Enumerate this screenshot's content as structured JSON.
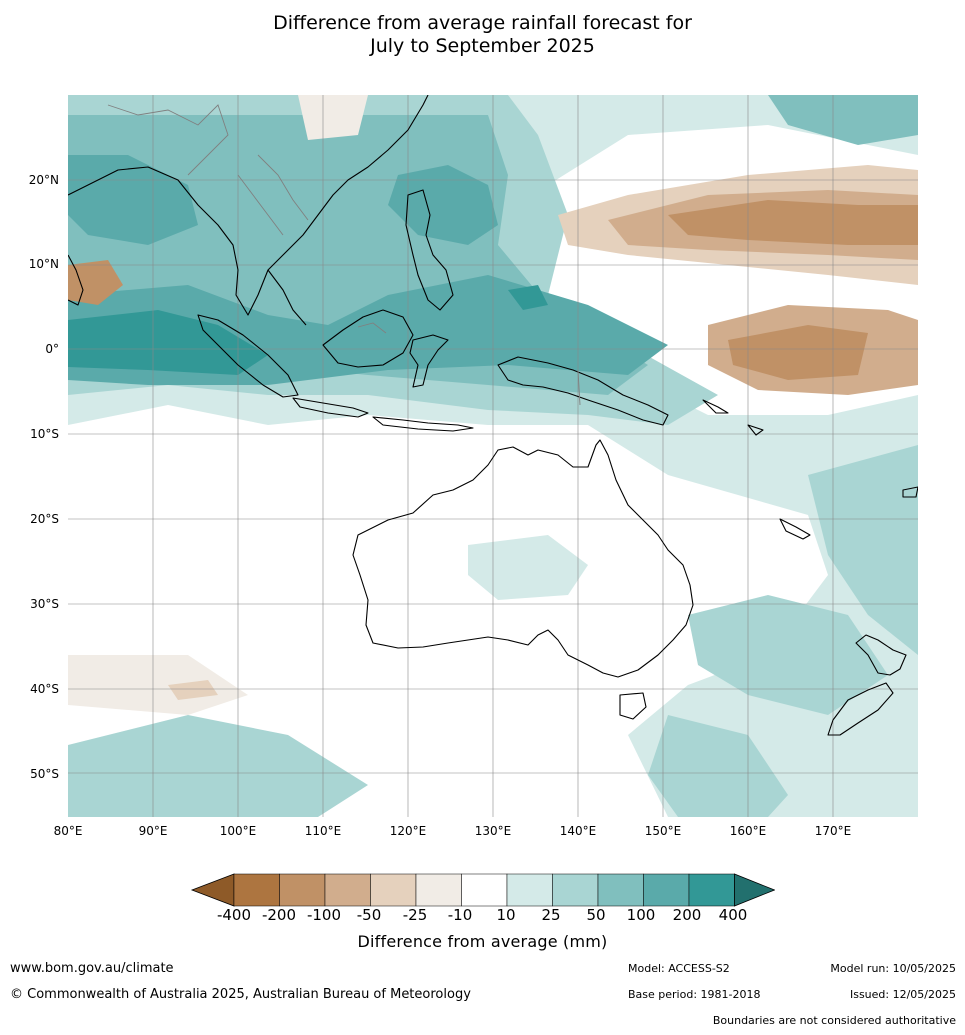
{
  "title": {
    "line1": "Difference from average rainfall forecast for",
    "line2": "July to September 2025"
  },
  "map": {
    "lat_labels": [
      "20°N",
      "10°N",
      "0°",
      "10°S",
      "20°S",
      "30°S",
      "40°S",
      "50°S"
    ],
    "lon_labels": [
      "80°E",
      "90°E",
      "100°E",
      "110°E",
      "120°E",
      "130°E",
      "140°E",
      "150°E",
      "160°E",
      "170°E"
    ],
    "extent": {
      "lon_min": 80,
      "lon_max": 180,
      "lat_min": -55,
      "lat_max": 30
    },
    "grid": true
  },
  "legend": {
    "tick_labels": [
      "-400",
      "-200",
      "-100",
      "-50",
      "-25",
      "-10",
      "10",
      "25",
      "50",
      "100",
      "200",
      "400"
    ],
    "colors": [
      "#8e5a28",
      "#ad7540",
      "#c09166",
      "#d1ad8d",
      "#e5d1bd",
      "#f1ece6",
      "#ffffff",
      "#d4eae8",
      "#a9d5d3",
      "#80bfbe",
      "#5aaaaa",
      "#329896",
      "#22706e"
    ],
    "axis_label": "Difference from average (mm)"
  },
  "footer": {
    "url": "www.bom.gov.au/climate",
    "copyright": "© Commonwealth of Australia 2025, Australian Bureau of Meteorology",
    "model": "Model: ACCESS-S2",
    "base_period": "Base period: 1981-2018",
    "model_run": "Model run: 10/05/2025",
    "issued": "Issued: 12/05/2025",
    "boundaries": "Boundaries are not considered authoritative"
  }
}
